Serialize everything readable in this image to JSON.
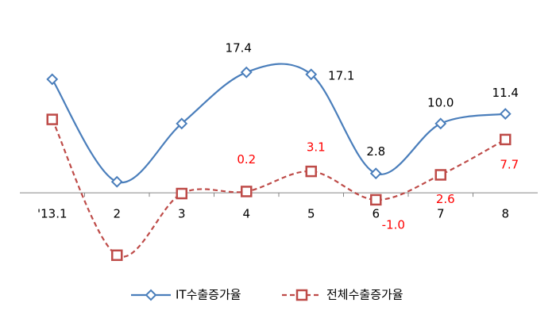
{
  "chart_data": {
    "type": "line",
    "categories": [
      "'13.1",
      "2",
      "3",
      "4",
      "5",
      "6",
      "7",
      "8"
    ],
    "series": [
      {
        "name": "IT수출증가율",
        "color": "#4a7ebb",
        "marker": "diamond",
        "dash": false,
        "values": [
          16.4,
          1.6,
          10.0,
          17.4,
          17.1,
          2.8,
          10.0,
          11.4
        ],
        "value_labels": [
          null,
          null,
          null,
          "17.4",
          "17.1",
          "2.8",
          "10.0",
          "11.4"
        ]
      },
      {
        "name": "전체수출증가율",
        "color": "#be4b48",
        "marker": "square",
        "dash": true,
        "values": [
          10.6,
          -9.0,
          -0.1,
          0.2,
          3.1,
          -1.0,
          2.6,
          7.7
        ],
        "value_labels": [
          null,
          null,
          null,
          "0.2",
          "3.1",
          "-1.0",
          "2.6",
          "7.7"
        ]
      }
    ],
    "ylim": [
      -12,
      22
    ],
    "legend": "bottom"
  }
}
